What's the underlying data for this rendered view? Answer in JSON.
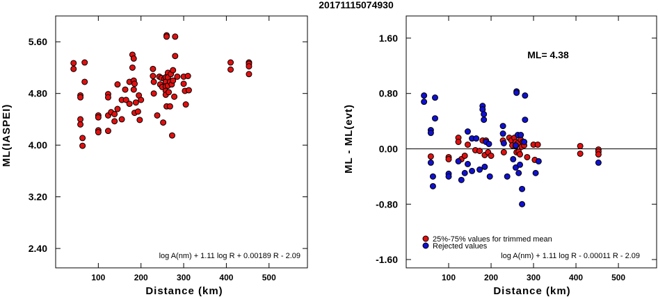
{
  "title": "20171115074930",
  "chart_data": [
    {
      "type": "scatter",
      "xlabel": "Distance (km)",
      "ylabel": "ML(IASPEI)",
      "xlim": [
        0,
        590
      ],
      "ylim": [
        2.1,
        6.0
      ],
      "xticks": [
        100,
        200,
        300,
        400,
        500
      ],
      "yticks": [
        2.4,
        3.2,
        4.0,
        4.8,
        5.6
      ],
      "xtick_labels": [
        "100",
        "200",
        "300",
        "400",
        "500"
      ],
      "ytick_labels": [
        "2.40",
        "3.20",
        "4.00",
        "4.80",
        "5.60"
      ],
      "formula": "log A(nm) + 1.11 log R + 0.00189 R - 2.09",
      "point_color": "#e01010",
      "points": [
        [
          42,
          5.27
        ],
        [
          42,
          5.18
        ],
        [
          58,
          4.77
        ],
        [
          58,
          4.74
        ],
        [
          58,
          4.4
        ],
        [
          58,
          4.32
        ],
        [
          63,
          4.11
        ],
        [
          63,
          3.99
        ],
        [
          68,
          5.28
        ],
        [
          68,
          4.98
        ],
        [
          100,
          4.46
        ],
        [
          100,
          4.43
        ],
        [
          100,
          4.23
        ],
        [
          100,
          4.2
        ],
        [
          123,
          4.79
        ],
        [
          123,
          4.74
        ],
        [
          123,
          4.46
        ],
        [
          123,
          4.22
        ],
        [
          130,
          4.51
        ],
        [
          138,
          4.48
        ],
        [
          138,
          4.37
        ],
        [
          145,
          4.94
        ],
        [
          145,
          4.56
        ],
        [
          155,
          4.7
        ],
        [
          155,
          4.4
        ],
        [
          163,
          4.86
        ],
        [
          165,
          4.7
        ],
        [
          173,
          4.64
        ],
        [
          173,
          4.98
        ],
        [
          180,
          5.4
        ],
        [
          180,
          5.2
        ],
        [
          183,
          5.34
        ],
        [
          183,
          5.0
        ],
        [
          183,
          4.86
        ],
        [
          185,
          4.95
        ],
        [
          185,
          4.5
        ],
        [
          188,
          4.66
        ],
        [
          193,
          4.52
        ],
        [
          195,
          4.77
        ],
        [
          197,
          4.39
        ],
        [
          200,
          4.7
        ],
        [
          228,
          5.18
        ],
        [
          228,
          5.07
        ],
        [
          230,
          4.98
        ],
        [
          230,
          4.8
        ],
        [
          238,
          4.46
        ],
        [
          243,
          5.06
        ],
        [
          245,
          4.94
        ],
        [
          248,
          5.04
        ],
        [
          250,
          4.9
        ],
        [
          252,
          4.35
        ],
        [
          255,
          5.03
        ],
        [
          258,
          5.05
        ],
        [
          258,
          4.98
        ],
        [
          258,
          4.91
        ],
        [
          258,
          4.84
        ],
        [
          258,
          4.78
        ],
        [
          260,
          5.7
        ],
        [
          260,
          5.68
        ],
        [
          260,
          4.6
        ],
        [
          263,
          5.12
        ],
        [
          263,
          5.05
        ],
        [
          263,
          4.92
        ],
        [
          265,
          4.82
        ],
        [
          268,
          4.98
        ],
        [
          268,
          4.6
        ],
        [
          270,
          5.1
        ],
        [
          272,
          4.94
        ],
        [
          273,
          4.15
        ],
        [
          275,
          5.16
        ],
        [
          275,
          5.0
        ],
        [
          278,
          4.75
        ],
        [
          280,
          5.68
        ],
        [
          280,
          5.38
        ],
        [
          285,
          5.06
        ],
        [
          300,
          5.06
        ],
        [
          300,
          4.95
        ],
        [
          303,
          4.84
        ],
        [
          305,
          4.63
        ],
        [
          310,
          5.07
        ],
        [
          312,
          4.85
        ],
        [
          410,
          5.28
        ],
        [
          410,
          5.17
        ],
        [
          453,
          5.28
        ],
        [
          453,
          5.26
        ],
        [
          453,
          5.22
        ],
        [
          453,
          5.1
        ]
      ]
    },
    {
      "type": "scatter",
      "xlabel": "Distance (km)",
      "ylabel": "ML - ML(evt)",
      "xlim": [
        0,
        590
      ],
      "ylim": [
        -1.72,
        1.92
      ],
      "xticks": [
        100,
        200,
        300,
        400,
        500
      ],
      "yticks": [
        -1.6,
        -0.8,
        0.0,
        0.8,
        1.6
      ],
      "xtick_labels": [
        "100",
        "200",
        "300",
        "400",
        "500"
      ],
      "ytick_labels": [
        "-1.60",
        "-0.80",
        "0.00",
        "0.80",
        "1.60"
      ],
      "zero_line": 0.0,
      "annotation": "ML= 4.38",
      "formula": "log A(nm) + 1.11 log R - 0.00011 R - 2.09",
      "legend": [
        {
          "label": "25%-75% values for trimmed mean",
          "color": "#e01010"
        },
        {
          "label": "Rejected values",
          "color": "#1010d0"
        }
      ],
      "series": [
        {
          "name": "25%-75% values for trimmed mean",
          "color": "#e01010",
          "points": [
            [
              58,
              -0.11
            ],
            [
              100,
              -0.12
            ],
            [
              100,
              -0.15
            ],
            [
              123,
              0.16
            ],
            [
              123,
              0.1
            ],
            [
              130,
              -0.15
            ],
            [
              138,
              -0.1
            ],
            [
              145,
              0.06
            ],
            [
              163,
              -0.02
            ],
            [
              173,
              -0.03
            ],
            [
              180,
              0.12
            ],
            [
              185,
              -0.09
            ],
            [
              188,
              0.12
            ],
            [
              193,
              -0.05
            ],
            [
              200,
              -0.1
            ],
            [
              228,
              0.12
            ],
            [
              230,
              -0.05
            ],
            [
              243,
              0.16
            ],
            [
              248,
              0.12
            ],
            [
              250,
              0.05
            ],
            [
              255,
              0.16
            ],
            [
              258,
              0.1
            ],
            [
              258,
              0.04
            ],
            [
              260,
              -0.05
            ],
            [
              263,
              0.08
            ],
            [
              265,
              -0.04
            ],
            [
              268,
              -0.08
            ],
            [
              270,
              0.13
            ],
            [
              272,
              0.03
            ],
            [
              275,
              0.1
            ],
            [
              278,
              0.05
            ],
            [
              285,
              -0.12
            ],
            [
              300,
              0.06
            ],
            [
              303,
              -0.16
            ],
            [
              310,
              0.06
            ],
            [
              410,
              0.04
            ],
            [
              410,
              -0.07
            ],
            [
              453,
              -0.01
            ],
            [
              453,
              -0.04
            ],
            [
              453,
              -0.08
            ]
          ]
        },
        {
          "name": "Rejected values",
          "color": "#1010d0",
          "points": [
            [
              42,
              0.77
            ],
            [
              42,
              0.68
            ],
            [
              58,
              0.27
            ],
            [
              58,
              0.23
            ],
            [
              58,
              -0.2
            ],
            [
              63,
              -0.4
            ],
            [
              63,
              -0.54
            ],
            [
              68,
              0.74
            ],
            [
              68,
              0.44
            ],
            [
              100,
              -0.36
            ],
            [
              100,
              -0.4
            ],
            [
              123,
              -0.18
            ],
            [
              130,
              -0.45
            ],
            [
              138,
              -0.35
            ],
            [
              145,
              0.25
            ],
            [
              145,
              -0.22
            ],
            [
              155,
              0.15
            ],
            [
              155,
              -0.32
            ],
            [
              165,
              0.15
            ],
            [
              173,
              -0.3
            ],
            [
              180,
              0.62
            ],
            [
              180,
              0.57
            ],
            [
              183,
              0.5
            ],
            [
              183,
              0.42
            ],
            [
              185,
              -0.26
            ],
            [
              188,
              0.1
            ],
            [
              195,
              0.07
            ],
            [
              197,
              -0.4
            ],
            [
              228,
              0.33
            ],
            [
              228,
              0.22
            ],
            [
              230,
              0.08
            ],
            [
              238,
              -0.4
            ],
            [
              252,
              -0.15
            ],
            [
              258,
              0.05
            ],
            [
              258,
              -0.27
            ],
            [
              260,
              0.83
            ],
            [
              260,
              0.81
            ],
            [
              263,
              0.2
            ],
            [
              265,
              -0.35
            ],
            [
              268,
              -0.23
            ],
            [
              270,
              0.2
            ],
            [
              273,
              -0.58
            ],
            [
              273,
              -0.8
            ],
            [
              278,
              0.1
            ],
            [
              280,
              0.77
            ],
            [
              280,
              0.42
            ],
            [
              305,
              -0.35
            ],
            [
              312,
              -0.18
            ],
            [
              453,
              -0.2
            ]
          ]
        }
      ]
    }
  ]
}
